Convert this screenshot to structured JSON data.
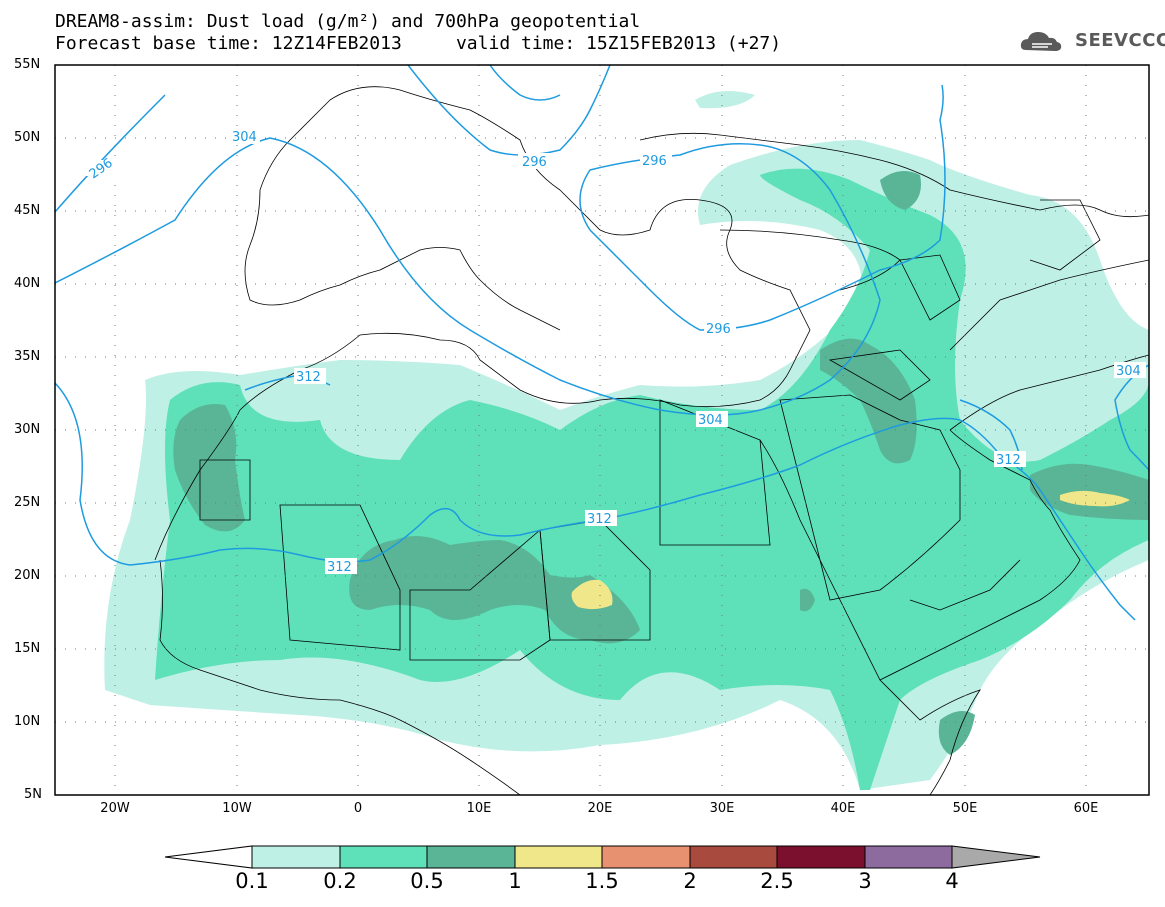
{
  "title": {
    "line1": "DREAM8-assim: Dust load (g/m²) and 700hPa geopotential",
    "line2": "Forecast base time: 12Z14FEB2013     valid time: 15Z15FEB2013 (+27)"
  },
  "logo": {
    "text": "SEEVCCC",
    "icon": "cloud-icon",
    "color": "#5a5a5a"
  },
  "map": {
    "lon_range": [
      -25,
      65
    ],
    "lat_range": [
      5,
      55
    ],
    "lat_ticks": [
      "55N",
      "50N",
      "45N",
      "40N",
      "35N",
      "30N",
      "25N",
      "20N",
      "15N",
      "10N",
      "5N"
    ],
    "lon_ticks": [
      "20W",
      "10W",
      "0",
      "10E",
      "20E",
      "30E",
      "40E",
      "50E",
      "60E"
    ],
    "grid": "dotted",
    "contour_color": "#1e9be0",
    "contour_labels": [
      "296",
      "304",
      "296",
      "296",
      "296",
      "312",
      "304",
      "312",
      "312",
      "304",
      "312"
    ]
  },
  "colorbar": {
    "labels": [
      "0.1",
      "0.2",
      "0.5",
      "1",
      "1.5",
      "2",
      "2.5",
      "3",
      "4"
    ],
    "colors": [
      "#bff0e5",
      "#5ee0b8",
      "#59b596",
      "#f0e68a",
      "#e89170",
      "#a84a3d",
      "#7a0f2e",
      "#8e6b9e",
      "#a9a9a9"
    ]
  }
}
